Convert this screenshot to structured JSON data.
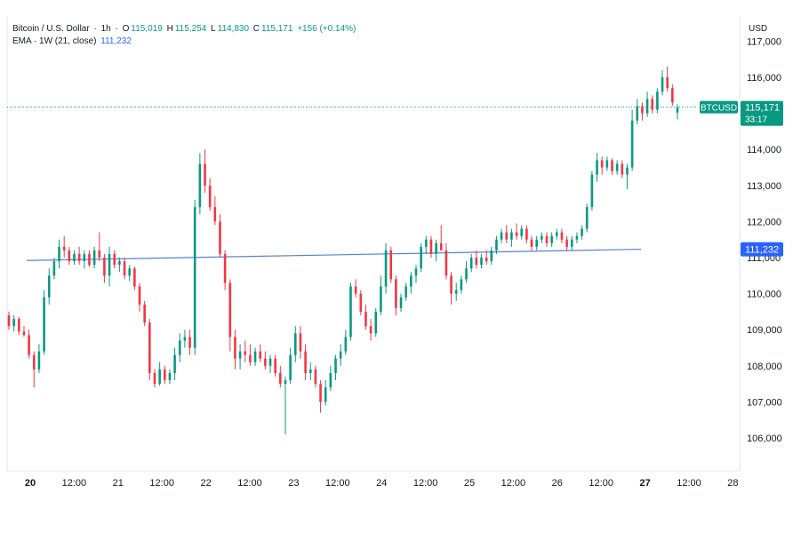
{
  "header": {
    "symbol_title": "Bitcoin / U.S. Dollar",
    "interval": "1h",
    "open_label": "O",
    "open": "115,019",
    "high_label": "H",
    "high": "115,254",
    "low_label": "L",
    "low": "114,830",
    "close_label": "C",
    "close": "115,171",
    "change": "+156 (+0.14%)",
    "ema_label": "EMA · 1W (21, close)",
    "ema_value": "111,232"
  },
  "price_axis": {
    "unit": "USD",
    "ticks": [
      "117,000",
      "116,000",
      "114,000",
      "113,000",
      "112,000",
      "111,000",
      "110,000",
      "109,000",
      "108,000",
      "107,000",
      "106,000"
    ]
  },
  "time_axis": {
    "ticks": [
      {
        "label": "20",
        "bold": true
      },
      {
        "label": "12:00",
        "bold": false
      },
      {
        "label": "21",
        "bold": false
      },
      {
        "label": "12:00",
        "bold": false
      },
      {
        "label": "22",
        "bold": false
      },
      {
        "label": "12:00",
        "bold": false
      },
      {
        "label": "23",
        "bold": false
      },
      {
        "label": "12:00",
        "bold": false
      },
      {
        "label": "24",
        "bold": false
      },
      {
        "label": "12:00",
        "bold": false
      },
      {
        "label": "25",
        "bold": false
      },
      {
        "label": "12:00",
        "bold": false
      },
      {
        "label": "26",
        "bold": false
      },
      {
        "label": "12:00",
        "bold": false
      },
      {
        "label": "27",
        "bold": true
      },
      {
        "label": "12:00",
        "bold": false
      },
      {
        "label": "28",
        "bold": false
      }
    ]
  },
  "price_tag": {
    "symbol": "BTCUSD",
    "price": "115,171",
    "countdown": "33:17",
    "color": "#089981"
  },
  "ema_tag": {
    "value": "111,232",
    "color": "#2962ff"
  },
  "colors": {
    "up": "#089981",
    "down": "#f23645",
    "ema": "#5b7fd6"
  },
  "chart_data": {
    "type": "candlestick",
    "x_axis": "date",
    "y_axis": "USD",
    "ylim": [
      105500,
      117200
    ],
    "candles": [
      {
        "i": 0,
        "o": 109400,
        "h": 109500,
        "l": 109000,
        "c": 109100
      },
      {
        "i": 1,
        "o": 109100,
        "h": 109400,
        "l": 108950,
        "c": 109300
      },
      {
        "i": 2,
        "o": 109300,
        "h": 109350,
        "l": 108850,
        "c": 108950
      },
      {
        "i": 3,
        "o": 108950,
        "h": 109100,
        "l": 108800,
        "c": 108850
      },
      {
        "i": 4,
        "o": 108850,
        "h": 109000,
        "l": 108200,
        "c": 108300
      },
      {
        "i": 5,
        "o": 108300,
        "h": 108400,
        "l": 107400,
        "c": 107900
      },
      {
        "i": 6,
        "o": 107900,
        "h": 108600,
        "l": 107800,
        "c": 108400
      },
      {
        "i": 7,
        "o": 108400,
        "h": 110100,
        "l": 108300,
        "c": 109900
      },
      {
        "i": 8,
        "o": 109900,
        "h": 110700,
        "l": 109700,
        "c": 110500
      },
      {
        "i": 9,
        "o": 110500,
        "h": 111000,
        "l": 110400,
        "c": 110900
      },
      {
        "i": 10,
        "o": 110900,
        "h": 111500,
        "l": 110700,
        "c": 111300
      },
      {
        "i": 11,
        "o": 111300,
        "h": 111600,
        "l": 111000,
        "c": 111200
      },
      {
        "i": 12,
        "o": 111200,
        "h": 111300,
        "l": 110800,
        "c": 110900
      },
      {
        "i": 13,
        "o": 110900,
        "h": 111200,
        "l": 110800,
        "c": 111100
      },
      {
        "i": 14,
        "o": 111100,
        "h": 111300,
        "l": 110800,
        "c": 110900
      },
      {
        "i": 15,
        "o": 110900,
        "h": 111200,
        "l": 110700,
        "c": 111100
      },
      {
        "i": 16,
        "o": 111100,
        "h": 111200,
        "l": 110750,
        "c": 110800
      },
      {
        "i": 17,
        "o": 110800,
        "h": 111300,
        "l": 110700,
        "c": 111200
      },
      {
        "i": 18,
        "o": 111200,
        "h": 111700,
        "l": 110900,
        "c": 111000
      },
      {
        "i": 19,
        "o": 111000,
        "h": 111100,
        "l": 110300,
        "c": 110500
      },
      {
        "i": 20,
        "o": 110500,
        "h": 111300,
        "l": 110200,
        "c": 111100
      },
      {
        "i": 21,
        "o": 111100,
        "h": 111200,
        "l": 110700,
        "c": 110800
      },
      {
        "i": 22,
        "o": 110800,
        "h": 111000,
        "l": 110600,
        "c": 110900
      },
      {
        "i": 23,
        "o": 110900,
        "h": 111000,
        "l": 110400,
        "c": 110500
      },
      {
        "i": 24,
        "o": 110500,
        "h": 110800,
        "l": 110350,
        "c": 110700
      },
      {
        "i": 25,
        "o": 110700,
        "h": 110750,
        "l": 110100,
        "c": 110200
      },
      {
        "i": 26,
        "o": 110200,
        "h": 110300,
        "l": 109500,
        "c": 109700
      },
      {
        "i": 27,
        "o": 109700,
        "h": 109800,
        "l": 109100,
        "c": 109200
      },
      {
        "i": 28,
        "o": 109200,
        "h": 109300,
        "l": 107600,
        "c": 107800
      },
      {
        "i": 29,
        "o": 107800,
        "h": 107900,
        "l": 107400,
        "c": 107500
      },
      {
        "i": 30,
        "o": 107500,
        "h": 108100,
        "l": 107450,
        "c": 107900
      },
      {
        "i": 31,
        "o": 107900,
        "h": 108000,
        "l": 107500,
        "c": 107600
      },
      {
        "i": 32,
        "o": 107600,
        "h": 107900,
        "l": 107500,
        "c": 107800
      },
      {
        "i": 33,
        "o": 107800,
        "h": 108500,
        "l": 107600,
        "c": 108300
      },
      {
        "i": 34,
        "o": 108300,
        "h": 108900,
        "l": 108100,
        "c": 108700
      },
      {
        "i": 35,
        "o": 108700,
        "h": 109000,
        "l": 108500,
        "c": 108800
      },
      {
        "i": 36,
        "o": 108800,
        "h": 109000,
        "l": 108300,
        "c": 108500
      },
      {
        "i": 37,
        "o": 108500,
        "h": 112600,
        "l": 108300,
        "c": 112400
      },
      {
        "i": 38,
        "o": 112400,
        "h": 113900,
        "l": 112200,
        "c": 113600
      },
      {
        "i": 39,
        "o": 113600,
        "h": 114000,
        "l": 112800,
        "c": 113000
      },
      {
        "i": 40,
        "o": 113000,
        "h": 113200,
        "l": 112300,
        "c": 112400
      },
      {
        "i": 41,
        "o": 112400,
        "h": 112700,
        "l": 111900,
        "c": 112000
      },
      {
        "i": 42,
        "o": 112000,
        "h": 112200,
        "l": 111000,
        "c": 111100
      },
      {
        "i": 43,
        "o": 111100,
        "h": 111200,
        "l": 110100,
        "c": 110300
      },
      {
        "i": 44,
        "o": 110300,
        "h": 110400,
        "l": 108400,
        "c": 108800
      },
      {
        "i": 45,
        "o": 108800,
        "h": 109000,
        "l": 107900,
        "c": 108200
      },
      {
        "i": 46,
        "o": 108200,
        "h": 108600,
        "l": 107900,
        "c": 108400
      },
      {
        "i": 47,
        "o": 108400,
        "h": 108700,
        "l": 108100,
        "c": 108300
      },
      {
        "i": 48,
        "o": 108300,
        "h": 108600,
        "l": 108000,
        "c": 108100
      },
      {
        "i": 49,
        "o": 108100,
        "h": 108500,
        "l": 108000,
        "c": 108400
      },
      {
        "i": 50,
        "o": 108400,
        "h": 108600,
        "l": 108100,
        "c": 108200
      },
      {
        "i": 51,
        "o": 108200,
        "h": 108400,
        "l": 107900,
        "c": 108000
      },
      {
        "i": 52,
        "o": 108000,
        "h": 108300,
        "l": 107800,
        "c": 108200
      },
      {
        "i": 53,
        "o": 108200,
        "h": 108300,
        "l": 107700,
        "c": 107800
      },
      {
        "i": 54,
        "o": 107800,
        "h": 108000,
        "l": 107400,
        "c": 107500
      },
      {
        "i": 55,
        "o": 107500,
        "h": 107700,
        "l": 106100,
        "c": 107600
      },
      {
        "i": 56,
        "o": 107600,
        "h": 108500,
        "l": 107500,
        "c": 108300
      },
      {
        "i": 57,
        "o": 108300,
        "h": 109100,
        "l": 108100,
        "c": 108900
      },
      {
        "i": 58,
        "o": 108900,
        "h": 109100,
        "l": 108200,
        "c": 108400
      },
      {
        "i": 59,
        "o": 108400,
        "h": 108600,
        "l": 107600,
        "c": 107800
      },
      {
        "i": 60,
        "o": 107800,
        "h": 108100,
        "l": 107600,
        "c": 107900
      },
      {
        "i": 61,
        "o": 107900,
        "h": 108000,
        "l": 107400,
        "c": 107500
      },
      {
        "i": 62,
        "o": 107500,
        "h": 107600,
        "l": 106700,
        "c": 107000
      },
      {
        "i": 63,
        "o": 107000,
        "h": 107600,
        "l": 106900,
        "c": 107400
      },
      {
        "i": 64,
        "o": 107400,
        "h": 108000,
        "l": 107300,
        "c": 107800
      },
      {
        "i": 65,
        "o": 107800,
        "h": 108300,
        "l": 107600,
        "c": 108200
      },
      {
        "i": 66,
        "o": 108200,
        "h": 108600,
        "l": 108000,
        "c": 108400
      },
      {
        "i": 67,
        "o": 108400,
        "h": 109000,
        "l": 108300,
        "c": 108800
      },
      {
        "i": 68,
        "o": 108800,
        "h": 110300,
        "l": 108700,
        "c": 110200
      },
      {
        "i": 69,
        "o": 110200,
        "h": 110400,
        "l": 109900,
        "c": 110000
      },
      {
        "i": 70,
        "o": 110000,
        "h": 110100,
        "l": 109400,
        "c": 109500
      },
      {
        "i": 71,
        "o": 109500,
        "h": 109700,
        "l": 109000,
        "c": 109100
      },
      {
        "i": 72,
        "o": 109100,
        "h": 109300,
        "l": 108700,
        "c": 108900
      },
      {
        "i": 73,
        "o": 108900,
        "h": 109600,
        "l": 108800,
        "c": 109500
      },
      {
        "i": 74,
        "o": 109500,
        "h": 110500,
        "l": 109400,
        "c": 110200
      },
      {
        "i": 75,
        "o": 110200,
        "h": 111400,
        "l": 110000,
        "c": 111200
      },
      {
        "i": 76,
        "o": 111200,
        "h": 111300,
        "l": 110300,
        "c": 110400
      },
      {
        "i": 77,
        "o": 110400,
        "h": 110500,
        "l": 109400,
        "c": 109600
      },
      {
        "i": 78,
        "o": 109600,
        "h": 110000,
        "l": 109500,
        "c": 109900
      },
      {
        "i": 79,
        "o": 109900,
        "h": 110300,
        "l": 109800,
        "c": 110200
      },
      {
        "i": 80,
        "o": 110200,
        "h": 110600,
        "l": 110000,
        "c": 110500
      },
      {
        "i": 81,
        "o": 110500,
        "h": 110800,
        "l": 110300,
        "c": 110700
      },
      {
        "i": 82,
        "o": 110700,
        "h": 111400,
        "l": 110600,
        "c": 111300
      },
      {
        "i": 83,
        "o": 111300,
        "h": 111600,
        "l": 111100,
        "c": 111500
      },
      {
        "i": 84,
        "o": 111500,
        "h": 111600,
        "l": 111000,
        "c": 111100
      },
      {
        "i": 85,
        "o": 111100,
        "h": 111500,
        "l": 110900,
        "c": 111400
      },
      {
        "i": 86,
        "o": 111400,
        "h": 111900,
        "l": 111300,
        "c": 111200
      },
      {
        "i": 87,
        "o": 111200,
        "h": 111400,
        "l": 110400,
        "c": 110500
      },
      {
        "i": 88,
        "o": 110500,
        "h": 110600,
        "l": 109700,
        "c": 110000
      },
      {
        "i": 89,
        "o": 110000,
        "h": 110300,
        "l": 109800,
        "c": 110100
      },
      {
        "i": 90,
        "o": 110100,
        "h": 110500,
        "l": 110000,
        "c": 110400
      },
      {
        "i": 91,
        "o": 110400,
        "h": 110900,
        "l": 110300,
        "c": 110700
      },
      {
        "i": 92,
        "o": 110700,
        "h": 111100,
        "l": 110600,
        "c": 111000
      },
      {
        "i": 93,
        "o": 111000,
        "h": 111200,
        "l": 110700,
        "c": 110800
      },
      {
        "i": 94,
        "o": 110800,
        "h": 111100,
        "l": 110700,
        "c": 111000
      },
      {
        "i": 95,
        "o": 111000,
        "h": 111200,
        "l": 110800,
        "c": 110900
      },
      {
        "i": 96,
        "o": 110900,
        "h": 111300,
        "l": 110800,
        "c": 111200
      },
      {
        "i": 97,
        "o": 111200,
        "h": 111600,
        "l": 111100,
        "c": 111500
      },
      {
        "i": 98,
        "o": 111500,
        "h": 111800,
        "l": 111400,
        "c": 111700
      },
      {
        "i": 99,
        "o": 111700,
        "h": 111900,
        "l": 111400,
        "c": 111500
      },
      {
        "i": 100,
        "o": 111500,
        "h": 111800,
        "l": 111300,
        "c": 111700
      },
      {
        "i": 101,
        "o": 111700,
        "h": 111950,
        "l": 111500,
        "c": 111600
      },
      {
        "i": 102,
        "o": 111600,
        "h": 111900,
        "l": 111500,
        "c": 111800
      },
      {
        "i": 103,
        "o": 111800,
        "h": 111900,
        "l": 111400,
        "c": 111500
      },
      {
        "i": 104,
        "o": 111500,
        "h": 111600,
        "l": 111200,
        "c": 111300
      },
      {
        "i": 105,
        "o": 111300,
        "h": 111600,
        "l": 111200,
        "c": 111500
      },
      {
        "i": 106,
        "o": 111500,
        "h": 111700,
        "l": 111400,
        "c": 111600
      },
      {
        "i": 107,
        "o": 111600,
        "h": 111700,
        "l": 111300,
        "c": 111400
      },
      {
        "i": 108,
        "o": 111400,
        "h": 111700,
        "l": 111300,
        "c": 111600
      },
      {
        "i": 109,
        "o": 111600,
        "h": 111800,
        "l": 111500,
        "c": 111700
      },
      {
        "i": 110,
        "o": 111700,
        "h": 111800,
        "l": 111400,
        "c": 111500
      },
      {
        "i": 111,
        "o": 111500,
        "h": 111600,
        "l": 111200,
        "c": 111300
      },
      {
        "i": 112,
        "o": 111300,
        "h": 111600,
        "l": 111200,
        "c": 111500
      },
      {
        "i": 113,
        "o": 111500,
        "h": 111700,
        "l": 111400,
        "c": 111600
      },
      {
        "i": 114,
        "o": 111600,
        "h": 111900,
        "l": 111500,
        "c": 111800
      },
      {
        "i": 115,
        "o": 111800,
        "h": 112500,
        "l": 111700,
        "c": 112400
      },
      {
        "i": 116,
        "o": 112400,
        "h": 113400,
        "l": 112300,
        "c": 113300
      },
      {
        "i": 117,
        "o": 113300,
        "h": 113900,
        "l": 113100,
        "c": 113700
      },
      {
        "i": 118,
        "o": 113700,
        "h": 113800,
        "l": 113300,
        "c": 113500
      },
      {
        "i": 119,
        "o": 113500,
        "h": 113800,
        "l": 113400,
        "c": 113700
      },
      {
        "i": 120,
        "o": 113700,
        "h": 113750,
        "l": 113300,
        "c": 113400
      },
      {
        "i": 121,
        "o": 113400,
        "h": 113700,
        "l": 113300,
        "c": 113600
      },
      {
        "i": 122,
        "o": 113600,
        "h": 113700,
        "l": 113200,
        "c": 113300
      },
      {
        "i": 123,
        "o": 113300,
        "h": 113600,
        "l": 112900,
        "c": 113500
      },
      {
        "i": 124,
        "o": 113500,
        "h": 115100,
        "l": 113400,
        "c": 114800
      },
      {
        "i": 125,
        "o": 114800,
        "h": 115400,
        "l": 114700,
        "c": 115200
      },
      {
        "i": 126,
        "o": 115200,
        "h": 115300,
        "l": 114800,
        "c": 115000
      },
      {
        "i": 127,
        "o": 115000,
        "h": 115600,
        "l": 114900,
        "c": 115400
      },
      {
        "i": 128,
        "o": 115400,
        "h": 115500,
        "l": 115000,
        "c": 115100
      },
      {
        "i": 129,
        "o": 115100,
        "h": 115700,
        "l": 115000,
        "c": 115600
      },
      {
        "i": 130,
        "o": 115600,
        "h": 116200,
        "l": 115500,
        "c": 116000
      },
      {
        "i": 131,
        "o": 116000,
        "h": 116300,
        "l": 115600,
        "c": 115700
      },
      {
        "i": 132,
        "o": 115700,
        "h": 115800,
        "l": 115200,
        "c": 115300
      },
      {
        "i": 133,
        "o": 115019,
        "h": 115254,
        "l": 114830,
        "c": 115171
      }
    ],
    "ema": {
      "name": "EMA · 1W (21, close)",
      "start": 110920,
      "end": 111232
    }
  }
}
